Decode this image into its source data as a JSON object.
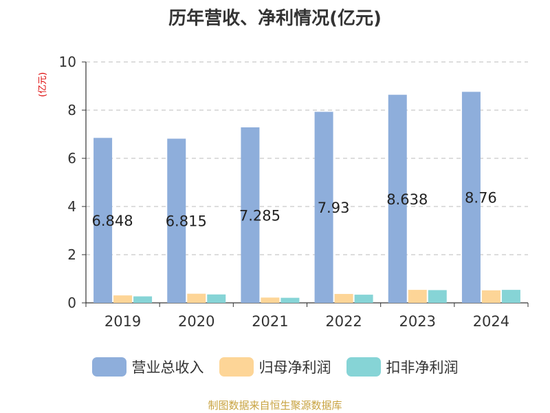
{
  "chart_data": {
    "type": "bar",
    "title": "历年营收、净利情况(亿元)",
    "ylabel": "(亿元)",
    "xlabel": "",
    "categories": [
      "2019",
      "2020",
      "2021",
      "2022",
      "2023",
      "2024"
    ],
    "ylim": [
      0,
      10
    ],
    "yticks": [
      0,
      2,
      4,
      6,
      8,
      10
    ],
    "grid": true,
    "legend_position": "bottom",
    "series": [
      {
        "name": "营业总收入",
        "color": "#8eaedb",
        "values": [
          6.848,
          6.815,
          7.285,
          7.93,
          8.638,
          8.76
        ],
        "labels": [
          "6.848",
          "6.815",
          "7.285",
          "7.93",
          "8.638",
          "8.76"
        ]
      },
      {
        "name": "归母净利润",
        "color": "#fdd597",
        "values": [
          0.31,
          0.38,
          0.22,
          0.37,
          0.54,
          0.52
        ]
      },
      {
        "name": "扣非净利润",
        "color": "#86d4d6",
        "values": [
          0.27,
          0.35,
          0.21,
          0.34,
          0.53,
          0.54
        ]
      }
    ]
  },
  "source": "制图数据来自恒生聚源数据库"
}
